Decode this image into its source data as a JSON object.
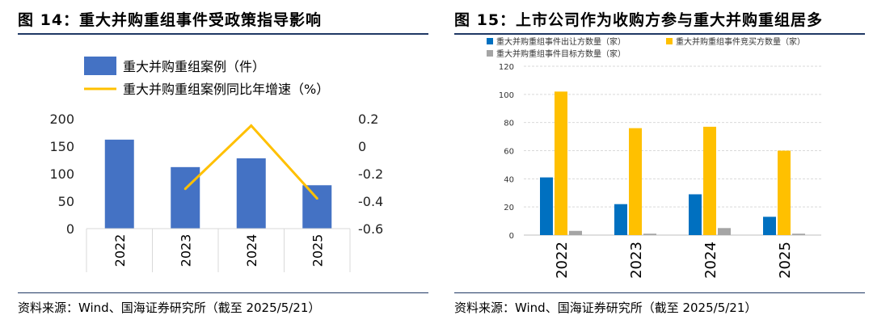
{
  "left": {
    "title": "图 14：重大并购重组事件受政策指导影响",
    "source": "资料来源：Wind、国海证券研究所（截至 2025/5/21）"
  },
  "right": {
    "title": "图 15：上市公司作为收购方参与重大并购重组居多",
    "source": "资料来源：Wind、国海证券研究所（截至 2025/5/21）"
  },
  "chart_data": [
    {
      "type": "bar",
      "categories": [
        "2022",
        "2023",
        "2024",
        "2025"
      ],
      "series": [
        {
          "name": "重大并购重组案例（件）",
          "kind": "bar",
          "axis": "left",
          "color": "#4472c4",
          "values": [
            162,
            112,
            128,
            79
          ]
        },
        {
          "name": "重大并购重组案例同比年增速（%）",
          "kind": "line",
          "axis": "right",
          "color": "#ffc000",
          "values": [
            null,
            -0.31,
            0.15,
            -0.38
          ]
        }
      ],
      "ylim": [
        0,
        200
      ],
      "y_ticks": [
        0,
        50,
        100,
        150,
        200
      ],
      "y2lim": [
        -0.6,
        0.2
      ],
      "y2_ticks": [
        0.2,
        0,
        -0.2,
        -0.4,
        -0.6
      ],
      "y2_tick_labels": [
        "0.2",
        "0",
        "-0.2",
        "-0.4",
        "-0.6"
      ],
      "legend": "top-left",
      "grid": false
    },
    {
      "type": "bar",
      "categories": [
        "2022",
        "2023",
        "2024",
        "2025"
      ],
      "series": [
        {
          "name": "重大并购重组事件出让方数量（家）",
          "color": "#0070c0",
          "values": [
            41,
            22,
            29,
            13
          ]
        },
        {
          "name": "重大并购重组事件竞买方数量（家）",
          "color": "#ffc000",
          "values": [
            102,
            76,
            77,
            60
          ]
        },
        {
          "name": "重大并购重组事件目标方数量（家）",
          "color": "#a5a5a5",
          "values": [
            3,
            1,
            5,
            1
          ]
        }
      ],
      "ylim": [
        0,
        120
      ],
      "y_ticks": [
        0,
        20,
        40,
        60,
        80,
        100,
        120
      ],
      "legend": "top",
      "grid": true
    }
  ]
}
